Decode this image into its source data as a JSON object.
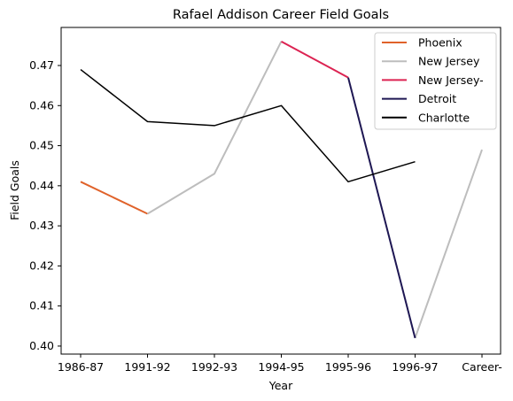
{
  "chart_data": {
    "type": "line",
    "title": "Rafael Addison Career Field Goals",
    "xlabel": "Year",
    "ylabel": "Field Goals",
    "categories": [
      "1986-87",
      "1991-92",
      "1992-93",
      "1994-95",
      "1995-96",
      "1996-97",
      "Career-"
    ],
    "ylim": [
      0.398,
      0.4795
    ],
    "yticks": [
      0.4,
      0.41,
      0.42,
      0.43,
      0.44,
      0.45,
      0.46,
      0.47
    ],
    "ytick_labels": [
      "0.40",
      "0.41",
      "0.42",
      "0.43",
      "0.44",
      "0.45",
      "0.46",
      "0.47"
    ],
    "grid": false,
    "legend_position": "top-right",
    "series": [
      {
        "name": "Phoenix",
        "color": "#e0622a",
        "values": [
          0.441,
          0.433,
          null,
          null,
          null,
          null,
          null
        ]
      },
      {
        "name": "New Jersey",
        "color": "#bdbdbd",
        "values": [
          null,
          0.433,
          0.443,
          0.476,
          null,
          0.402,
          0.449
        ]
      },
      {
        "name": "New Jersey-",
        "color": "#dc2352",
        "values": [
          null,
          null,
          null,
          0.476,
          0.467,
          null,
          null
        ]
      },
      {
        "name": "Detroit",
        "color": "#1e1753",
        "values": [
          null,
          null,
          null,
          null,
          0.467,
          0.402,
          null
        ]
      },
      {
        "name": "Charlotte",
        "color": "#000000",
        "values": [
          0.469,
          0.456,
          0.455,
          0.46,
          0.441,
          0.446,
          null
        ]
      }
    ]
  }
}
